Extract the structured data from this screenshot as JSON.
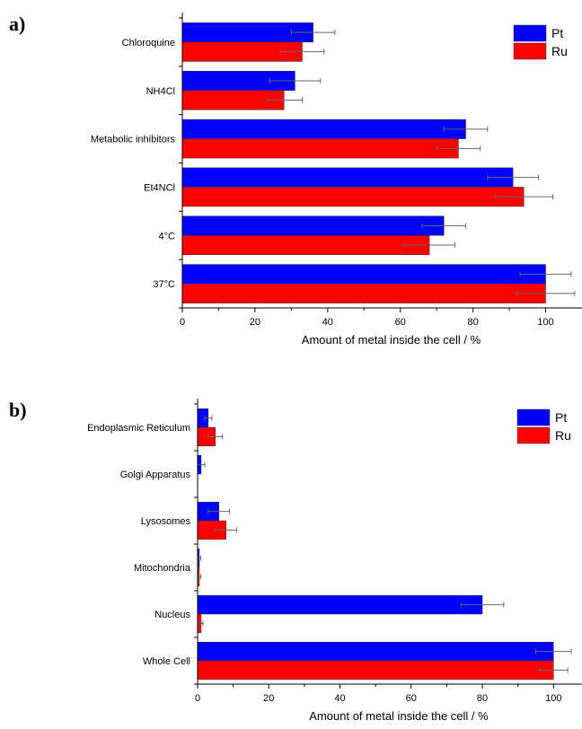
{
  "chart_data": [
    {
      "type": "bar",
      "orientation": "horizontal",
      "panel_label": "a)",
      "categories": [
        "Chloroquine",
        "NH4Cl",
        "Metabolic inhibitors",
        "Et4NCl",
        "4°C",
        "37°C"
      ],
      "series": [
        {
          "name": "Pt",
          "color": "#0000ff",
          "values": [
            36,
            31,
            78,
            91,
            72,
            100
          ],
          "errors": [
            6,
            7,
            6,
            7,
            6,
            7
          ]
        },
        {
          "name": "Ru",
          "color": "#ff0000",
          "values": [
            33,
            28,
            76,
            94,
            68,
            100
          ],
          "errors": [
            6,
            5,
            6,
            8,
            7,
            8
          ]
        }
      ],
      "xlabel": "Amount of metal inside the cell / %",
      "xlim": [
        0,
        110
      ],
      "xticks": [
        "0",
        "20",
        "40",
        "60",
        "80",
        "100"
      ],
      "legend": "top-right"
    },
    {
      "type": "bar",
      "orientation": "horizontal",
      "panel_label": "b)",
      "categories": [
        "Endoplasmic Reticulum",
        "Golgi Apparatus",
        "Lysosomes",
        "Mitochondria",
        "Nucleus",
        "Whole Cell"
      ],
      "series": [
        {
          "name": "Pt",
          "color": "#0000ff",
          "values": [
            3,
            1,
            6,
            0.5,
            80,
            100
          ],
          "errors": [
            1,
            1,
            3,
            0.4,
            6,
            5
          ]
        },
        {
          "name": "Ru",
          "color": "#ff0000",
          "values": [
            5,
            0,
            8,
            0.5,
            1,
            100
          ],
          "errors": [
            2,
            0,
            3,
            0.4,
            0.5,
            4
          ]
        }
      ],
      "xlabel": "Amount of metal inside the cell / %",
      "xlim": [
        0,
        108
      ],
      "xticks": [
        "0",
        "20",
        "40",
        "60",
        "80",
        "100"
      ],
      "legend": "top-right"
    }
  ]
}
